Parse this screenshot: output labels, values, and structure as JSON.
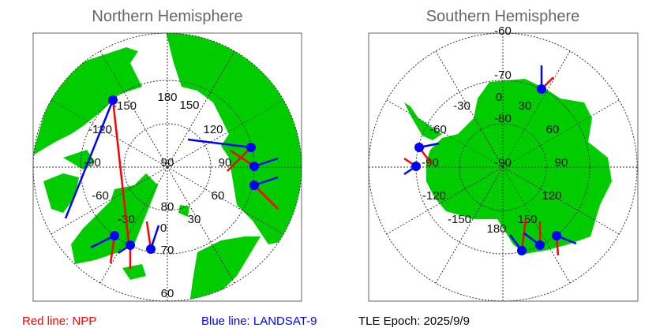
{
  "north": {
    "title": "Northern Hemisphere",
    "lon_labels": [
      "180",
      "150",
      "120",
      "90",
      "60",
      "30",
      "0",
      "-30",
      "-60",
      "-90",
      "-120",
      "-150"
    ],
    "lat_labels": [
      "90",
      "80",
      "70",
      "60"
    ]
  },
  "south": {
    "title": "Southern Hemisphere",
    "lon_labels": [
      "180",
      "150",
      "120",
      "90",
      "60",
      "30",
      "0",
      "-30",
      "-60",
      "-90",
      "-120",
      "-150"
    ],
    "lat_labels": [
      "-90",
      "-80",
      "-70",
      "-60"
    ]
  },
  "legend": {
    "red": "Red line: NPP",
    "blue": "Blue line: LANDSAT-9",
    "epoch": "TLE Epoch: 2025/9/9"
  },
  "colors": {
    "land": "#00cc00",
    "npp": "#ff0000",
    "landsat": "#0000ff",
    "grid": "#333333",
    "frame": "#666666"
  }
}
